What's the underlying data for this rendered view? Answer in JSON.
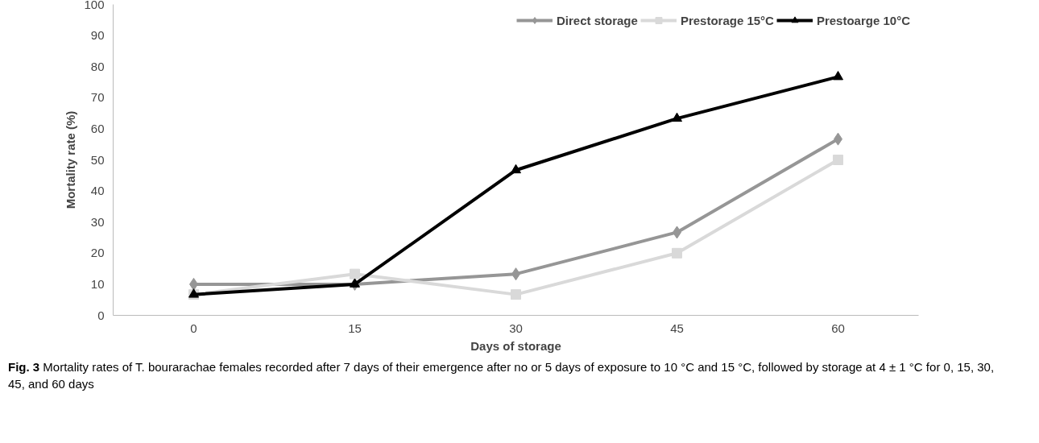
{
  "chart_data": {
    "type": "line",
    "xlabel": "Days of storage",
    "ylabel": "Mortality rate (%)",
    "categories": [
      "0",
      "15",
      "30",
      "45",
      "60"
    ],
    "series": [
      {
        "name": "Direct storage",
        "color": "#969696",
        "marker": "diamond",
        "values": [
          10,
          10,
          13.3,
          26.7,
          56.7
        ]
      },
      {
        "name": "Prestorage 15°C",
        "color": "#d9d9d9",
        "marker": "square",
        "values": [
          6.7,
          13.3,
          6.7,
          20,
          50
        ]
      },
      {
        "name": "Prestoarge 10°C",
        "color": "#000000",
        "marker": "triangle",
        "values": [
          6.7,
          10,
          46.7,
          63.3,
          76.7
        ]
      }
    ],
    "ylim": [
      0,
      100
    ],
    "yticks": [
      0,
      10,
      20,
      30,
      40,
      50,
      60,
      70,
      80,
      90,
      100
    ],
    "grid": false,
    "legend": "top right",
    "annotations": [
      "Fig. 3 Mortality rates of T. bourarachae females recorded after 7 days of their emergence after no or 5 days of exposure to 10 °C and 15 °C, followed by storage at 4 ± 1 °C for 0, 15, 30, 45, and 60 days"
    ]
  }
}
